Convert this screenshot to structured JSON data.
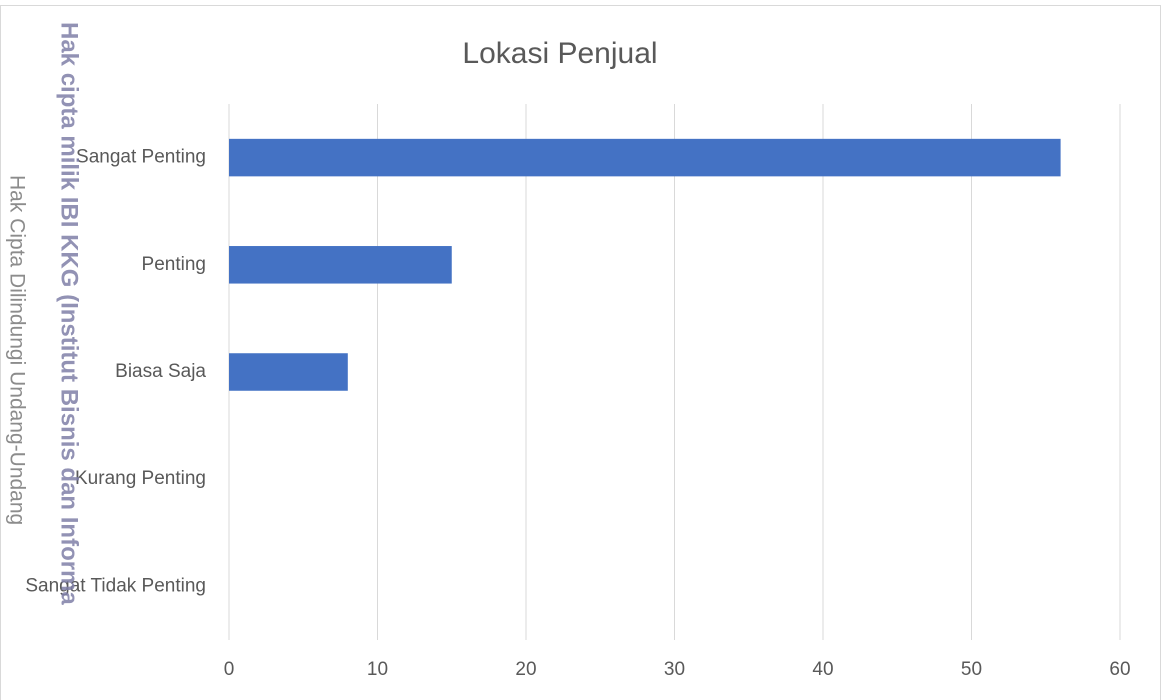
{
  "chart_data": {
    "type": "bar",
    "orientation": "horizontal",
    "title": "Lokasi Penjual",
    "categories": [
      "Sangat Penting",
      "Penting",
      "Biasa Saja",
      "Kurang Penting",
      "Sangat Tidak Penting"
    ],
    "values": [
      56,
      15,
      8,
      0,
      0
    ],
    "color": "#4472c4",
    "xlim": [
      0,
      60
    ],
    "xticks": [
      0,
      10,
      20,
      30,
      40,
      50,
      60
    ],
    "grid": true
  },
  "watermarks": [
    "Hak cipta milik IBI KKG (Institut Bisnis dan Informa",
    "Hak Cipta Dilindungi Undang-Undang"
  ]
}
